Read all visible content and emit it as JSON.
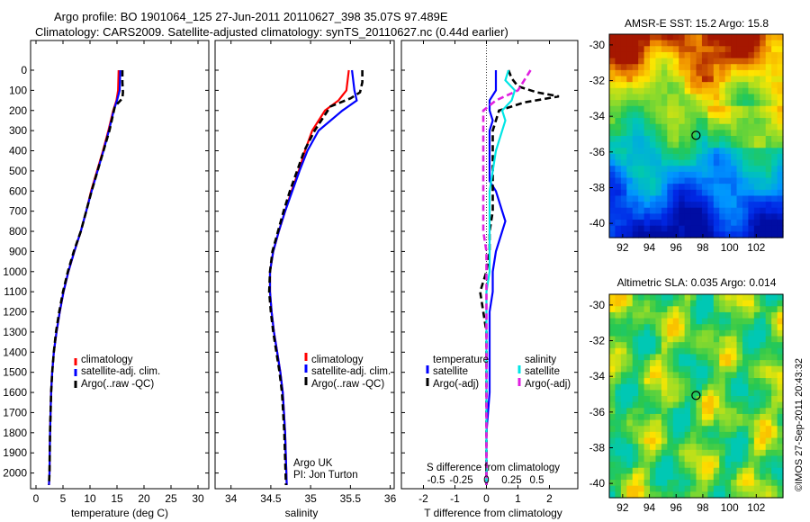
{
  "header": {
    "line1": "Argo profile: BO 1901064_125 27-Jun-2011 20110627_398 35.07S 97.489E",
    "line2": "Climatology: CARS2009. Satellite-adjusted climatology: synTS_20110627.nc (0.44d earlier)"
  },
  "colors": {
    "climatology": "#ff0000",
    "satellite": "#0000ff",
    "argo": "#000000",
    "sal_satellite": "#00e5e5",
    "sal_argo": "#e020e0"
  },
  "chart_data": [
    {
      "id": "temperature",
      "type": "line",
      "xlabel": "temperature (deg C)",
      "ylabel": "",
      "xlim": [
        -1,
        32
      ],
      "ylim": [
        2080,
        0
      ],
      "xticks": [
        0,
        5,
        10,
        15,
        20,
        25,
        30
      ],
      "yticks": [
        0,
        100,
        200,
        300,
        400,
        500,
        600,
        700,
        800,
        900,
        1000,
        1100,
        1200,
        1300,
        1400,
        1500,
        1600,
        1700,
        1800,
        1900,
        2000
      ],
      "series": [
        {
          "name": "climatology",
          "style": "solid",
          "x": [
            15.3,
            15.2,
            14.9,
            14.3,
            13.4,
            12.4,
            11.3,
            10.2,
            9.3,
            8.3,
            7.1,
            6.0,
            5.1,
            4.4,
            3.8,
            3.3,
            3.0,
            2.8,
            2.6,
            2.5,
            2.4
          ],
          "y": [
            0,
            100,
            150,
            200,
            300,
            400,
            500,
            600,
            700,
            800,
            900,
            1000,
            1100,
            1200,
            1300,
            1400,
            1500,
            1600,
            1800,
            2000,
            2060
          ]
        },
        {
          "name": "satellite-adj. clim.",
          "style": "solid",
          "x": [
            15.6,
            15.5,
            15.0,
            14.4,
            13.5,
            12.5,
            11.4,
            10.3,
            9.3,
            8.3,
            7.1,
            6.0,
            5.1,
            4.4,
            3.8,
            3.3,
            3.0,
            2.8,
            2.6,
            2.5,
            2.4
          ],
          "y": [
            0,
            100,
            150,
            200,
            300,
            400,
            500,
            600,
            700,
            800,
            900,
            1000,
            1100,
            1200,
            1300,
            1400,
            1500,
            1600,
            1800,
            2000,
            2060
          ]
        },
        {
          "name": "Argo(..raw -QC)",
          "style": "dashed",
          "x": [
            16.0,
            16.0,
            16.1,
            16.0,
            14.6,
            13.6,
            12.5,
            11.4,
            10.3,
            9.3,
            8.3,
            7.0,
            5.9,
            5.0,
            4.3,
            3.7,
            3.3,
            3.0,
            2.8,
            2.6,
            2.5,
            2.4
          ],
          "y": [
            0,
            60,
            110,
            140,
            180,
            300,
            400,
            500,
            600,
            700,
            800,
            900,
            1000,
            1100,
            1200,
            1300,
            1400,
            1500,
            1600,
            1800,
            2000,
            2060
          ]
        }
      ]
    },
    {
      "id": "salinity",
      "type": "line",
      "xlabel": "salinity",
      "ylabel": "",
      "xlim": [
        33.8,
        36.05
      ],
      "ylim": [
        2080,
        0
      ],
      "xticks": [
        34,
        34.5,
        35,
        35.5,
        36
      ],
      "series": [
        {
          "name": "climatology",
          "style": "solid",
          "x": [
            35.48,
            35.45,
            35.35,
            35.18,
            35.02,
            34.93,
            34.85,
            34.76,
            34.68,
            34.6,
            34.53,
            34.49,
            34.49,
            34.51,
            34.54,
            34.58,
            34.62,
            34.65,
            34.68,
            34.7
          ],
          "y": [
            0,
            100,
            150,
            200,
            300,
            400,
            500,
            600,
            700,
            800,
            900,
            1000,
            1100,
            1200,
            1300,
            1400,
            1500,
            1600,
            1800,
            2060
          ]
        },
        {
          "name": "satellite-adj. clim.",
          "style": "solid",
          "x": [
            35.52,
            35.55,
            35.58,
            35.4,
            35.1,
            34.96,
            34.86,
            34.77,
            34.68,
            34.6,
            34.53,
            34.49,
            34.49,
            34.51,
            34.54,
            34.58,
            34.62,
            34.65,
            34.68,
            34.7
          ],
          "y": [
            0,
            100,
            150,
            200,
            300,
            400,
            500,
            600,
            700,
            800,
            900,
            1000,
            1100,
            1200,
            1300,
            1400,
            1500,
            1600,
            1800,
            2060
          ]
        },
        {
          "name": "Argo(..raw -QC)",
          "style": "dashed",
          "x": [
            35.65,
            35.65,
            35.62,
            35.5,
            35.25,
            35.05,
            34.92,
            34.83,
            34.74,
            34.66,
            34.59,
            34.52,
            34.49,
            34.48,
            34.5,
            34.53,
            34.57,
            34.61,
            34.64,
            34.67,
            34.69
          ],
          "y": [
            0,
            60,
            110,
            140,
            180,
            300,
            400,
            500,
            600,
            700,
            800,
            900,
            1000,
            1100,
            1200,
            1300,
            1400,
            1500,
            1600,
            1800,
            2060
          ]
        }
      ],
      "annotation": [
        "Argo UK",
        "PI: Jon Turton"
      ]
    },
    {
      "id": "difference",
      "type": "line",
      "xlabel": "T difference from climatology",
      "x2label": "S difference from climatology",
      "ylabel": "",
      "xlim": [
        -2.7,
        2.9
      ],
      "ylim": [
        2080,
        0
      ],
      "xticks": [
        -2,
        -1,
        0,
        1,
        2
      ],
      "x2ticks": [
        {
          "label": "-0.5",
          "pos": -1.6
        },
        {
          "label": "-0.25",
          "pos": -0.8
        },
        {
          "label": "0",
          "pos": 0
        },
        {
          "label": "0.25",
          "pos": 0.8
        },
        {
          "label": "0.5",
          "pos": 1.6
        }
      ],
      "legend_groups": [
        "temperature",
        "salinity"
      ],
      "series": [
        {
          "name": "temperature satellite",
          "group": "temperature",
          "label": "satellite",
          "style": "solid",
          "color_key": "satellite",
          "x": [
            0.3,
            0.3,
            0.3,
            0.1,
            0.1,
            0.2,
            0.1,
            0.1,
            0.1,
            0.1,
            0.3,
            0.4,
            0.5,
            0.6,
            0.5,
            0.3,
            0.2,
            0.2,
            0.1,
            0.1,
            0.1,
            0.1,
            0.1,
            0.0,
            0.0,
            0.0
          ],
          "y": [
            0,
            50,
            100,
            150,
            200,
            250,
            300,
            400,
            500,
            550,
            600,
            650,
            700,
            750,
            800,
            900,
            1000,
            1100,
            1200,
            1300,
            1400,
            1500,
            1600,
            1800,
            2000,
            2060
          ]
        },
        {
          "name": "temperature Argo(-adj)",
          "group": "temperature",
          "label": "Argo(-adj)",
          "style": "dashed",
          "color_key": "argo",
          "x": [
            0.7,
            0.8,
            1.0,
            1.6,
            2.3,
            1.2,
            0.4,
            0.3,
            0.2,
            0.2,
            0.2,
            0.2,
            0.2,
            0.1,
            0.1,
            0.0,
            -0.1,
            -0.2,
            -0.1,
            0.0,
            0.0,
            0.0,
            0.0,
            0.0,
            0.0
          ],
          "y": [
            0,
            40,
            80,
            110,
            130,
            160,
            200,
            250,
            300,
            400,
            500,
            600,
            700,
            800,
            900,
            1000,
            1050,
            1100,
            1200,
            1300,
            1400,
            1500,
            1600,
            1800,
            2060
          ]
        },
        {
          "name": "salinity satellite",
          "group": "salinity",
          "label": "satellite",
          "style": "solid",
          "color_key": "sal_satellite",
          "x": [
            0.7,
            0.6,
            0.9,
            0.8,
            0.5,
            0.6,
            0.5,
            0.3,
            0.2,
            0.1,
            0.1,
            0.1,
            0.1,
            0.1,
            0.0,
            0.0,
            0.0,
            0.0,
            0.0,
            0.0,
            0.0
          ],
          "y": [
            0,
            50,
            100,
            150,
            200,
            250,
            300,
            400,
            500,
            600,
            700,
            800,
            900,
            1000,
            1100,
            1200,
            1300,
            1400,
            1600,
            1800,
            2060
          ]
        },
        {
          "name": "salinity Argo(-adj)",
          "group": "salinity",
          "label": "Argo(-adj)",
          "style": "dashed",
          "color_key": "sal_argo",
          "x": [
            1.4,
            1.2,
            1.0,
            0.3,
            -0.1,
            -0.1,
            -0.1,
            -0.1,
            -0.1,
            -0.1,
            -0.1,
            0.0,
            0.0,
            0.0,
            0.0,
            0.0,
            0.0,
            0.0,
            0.0
          ],
          "y": [
            0,
            50,
            100,
            150,
            200,
            300,
            400,
            500,
            600,
            700,
            800,
            900,
            1000,
            1100,
            1200,
            1400,
            1600,
            1800,
            2060
          ]
        }
      ]
    },
    {
      "id": "sst_map",
      "type": "heatmap",
      "title": "AMSR-E SST: 15.2 Argo: 15.8",
      "xlim": [
        91,
        104
      ],
      "ylim": [
        -40.8,
        -29.4
      ],
      "xticks": [
        92,
        94,
        96,
        98,
        100,
        102
      ],
      "yticks": [
        -30,
        -32,
        -34,
        -36,
        -38,
        -40
      ],
      "marker": {
        "lon": 97.489,
        "lat": -35.07
      }
    },
    {
      "id": "sla_map",
      "type": "heatmap",
      "title": "Altimetric SLA: 0.035 Argo: 0.014",
      "xlim": [
        91,
        104
      ],
      "ylim": [
        -40.8,
        -29.4
      ],
      "xticks": [
        92,
        94,
        96,
        98,
        100,
        102
      ],
      "yticks": [
        -30,
        -32,
        -34,
        -36,
        -38,
        -40
      ],
      "marker": {
        "lon": 97.489,
        "lat": -35.07
      }
    }
  ],
  "legends": {
    "temperature": [
      "climatology",
      "satellite-adj. clim.",
      "Argo(..raw -QC)"
    ],
    "salinity": [
      "climatology",
      "satellite-adj. clim.",
      "Argo(..raw -QC)"
    ],
    "difference_headers": [
      "temperature",
      "salinity"
    ],
    "difference_items": [
      [
        "satellite",
        "satellite"
      ],
      [
        "Argo(-adj)",
        "Argo(-adj)"
      ]
    ]
  },
  "watermark": "©IMOS 27-Sep-2011 20:43:32"
}
